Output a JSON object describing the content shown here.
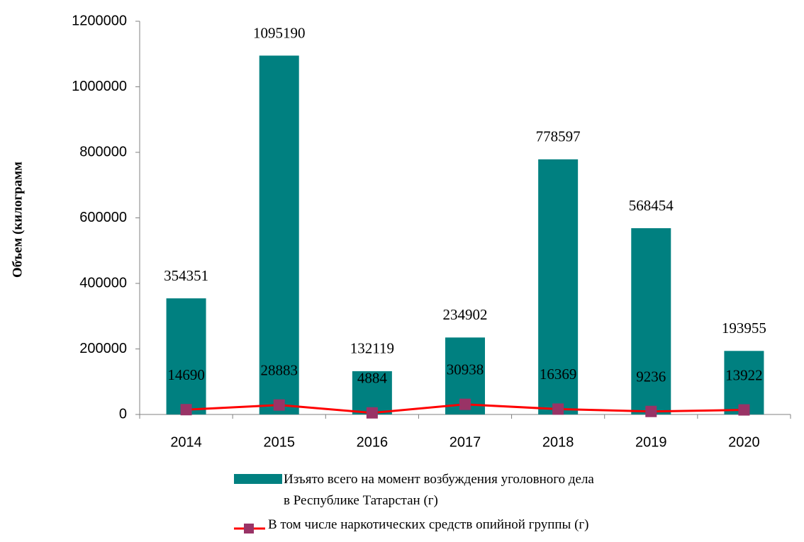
{
  "chart_data": {
    "type": "bar",
    "y_axis_label": "Объем (килограмм",
    "categories": [
      "2014",
      "2015",
      "2016",
      "2017",
      "2018",
      "2019",
      "2020"
    ],
    "series": [
      {
        "name": "Изъято всего на момент возбуждения уголовного дела в Республике Татарстан (г)",
        "type": "bar",
        "color": "#008080",
        "values": [
          354351,
          1095190,
          132119,
          234902,
          778597,
          568454,
          193955
        ]
      },
      {
        "name": "В том числе наркотических средств опийной группы (г)",
        "type": "line",
        "color": "#ff0000",
        "marker_color": "#993366",
        "values": [
          14690,
          28883,
          4884,
          30938,
          16369,
          9236,
          13922
        ]
      }
    ],
    "ylim": [
      0,
      1200000
    ],
    "yticks": [
      0,
      200000,
      400000,
      600000,
      800000,
      1000000,
      1200000
    ]
  }
}
